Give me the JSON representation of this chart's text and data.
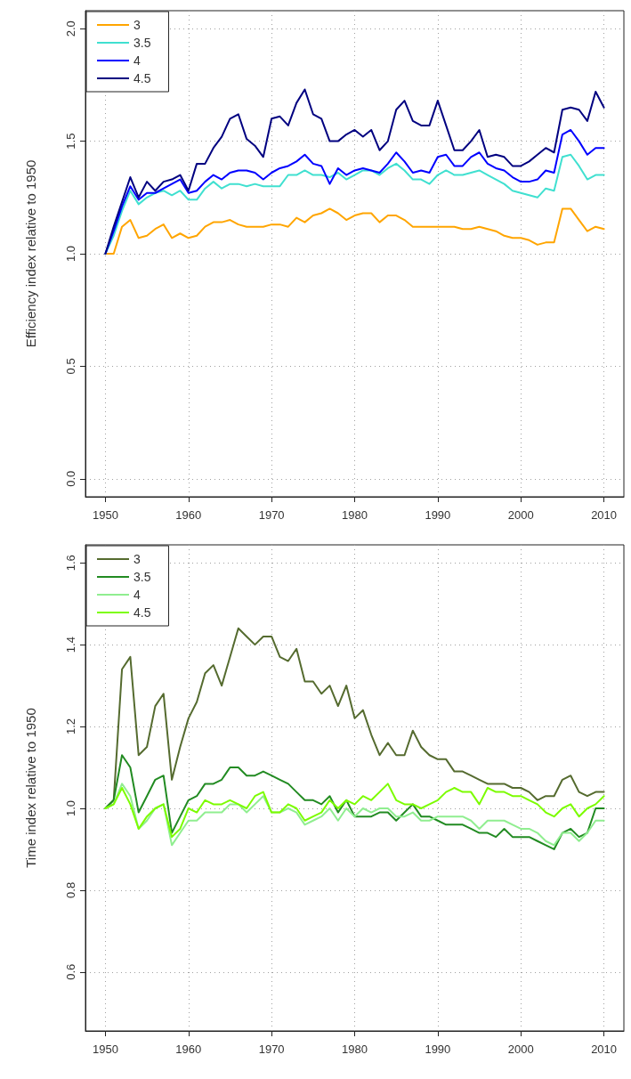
{
  "chart_data": [
    {
      "type": "line",
      "ylabel": "Efficiency index relative to 1950",
      "x": [
        1950,
        1951,
        1952,
        1953,
        1954,
        1955,
        1956,
        1957,
        1958,
        1959,
        1960,
        1961,
        1962,
        1963,
        1964,
        1965,
        1966,
        1967,
        1968,
        1969,
        1970,
        1971,
        1972,
        1973,
        1974,
        1975,
        1976,
        1977,
        1978,
        1979,
        1980,
        1981,
        1982,
        1983,
        1984,
        1985,
        1986,
        1987,
        1988,
        1989,
        1990,
        1991,
        1992,
        1993,
        1994,
        1995,
        1996,
        1997,
        1998,
        1999,
        2000,
        2001,
        2002,
        2003,
        2004,
        2005,
        2006,
        2007,
        2008,
        2009,
        2010
      ],
      "series": [
        {
          "name": "3",
          "color": "#ffa500",
          "values": [
            1.0,
            1.0,
            1.12,
            1.15,
            1.07,
            1.08,
            1.11,
            1.13,
            1.07,
            1.09,
            1.07,
            1.08,
            1.12,
            1.14,
            1.14,
            1.15,
            1.13,
            1.12,
            1.12,
            1.12,
            1.13,
            1.13,
            1.12,
            1.16,
            1.14,
            1.17,
            1.18,
            1.2,
            1.18,
            1.15,
            1.17,
            1.18,
            1.18,
            1.14,
            1.17,
            1.17,
            1.15,
            1.12,
            1.12,
            1.12,
            1.12,
            1.12,
            1.12,
            1.11,
            1.11,
            1.12,
            1.11,
            1.1,
            1.08,
            1.07,
            1.07,
            1.06,
            1.04,
            1.05,
            1.05,
            1.2,
            1.2,
            1.15,
            1.1,
            1.12,
            1.11
          ]
        },
        {
          "name": "3.5",
          "color": "#40e0d0",
          "values": [
            1.0,
            1.08,
            1.19,
            1.28,
            1.22,
            1.25,
            1.27,
            1.28,
            1.26,
            1.28,
            1.24,
            1.24,
            1.29,
            1.32,
            1.29,
            1.31,
            1.31,
            1.3,
            1.31,
            1.3,
            1.3,
            1.3,
            1.35,
            1.35,
            1.37,
            1.35,
            1.35,
            1.34,
            1.36,
            1.33,
            1.35,
            1.37,
            1.37,
            1.35,
            1.38,
            1.4,
            1.37,
            1.33,
            1.33,
            1.31,
            1.35,
            1.37,
            1.35,
            1.35,
            1.36,
            1.37,
            1.35,
            1.33,
            1.31,
            1.28,
            1.27,
            1.26,
            1.25,
            1.29,
            1.28,
            1.43,
            1.44,
            1.39,
            1.33,
            1.35,
            1.35
          ]
        },
        {
          "name": "4",
          "color": "#0000ff",
          "values": [
            1.0,
            1.1,
            1.21,
            1.3,
            1.24,
            1.27,
            1.27,
            1.29,
            1.31,
            1.33,
            1.27,
            1.28,
            1.32,
            1.35,
            1.33,
            1.36,
            1.37,
            1.37,
            1.36,
            1.33,
            1.36,
            1.38,
            1.39,
            1.41,
            1.44,
            1.4,
            1.39,
            1.31,
            1.38,
            1.35,
            1.37,
            1.38,
            1.37,
            1.36,
            1.4,
            1.45,
            1.41,
            1.36,
            1.37,
            1.36,
            1.43,
            1.44,
            1.39,
            1.39,
            1.43,
            1.45,
            1.4,
            1.38,
            1.37,
            1.34,
            1.32,
            1.32,
            1.33,
            1.37,
            1.36,
            1.53,
            1.55,
            1.5,
            1.44,
            1.47,
            1.47
          ]
        },
        {
          "name": "4.5",
          "color": "#000080",
          "values": [
            1.0,
            1.12,
            1.23,
            1.34,
            1.25,
            1.32,
            1.28,
            1.32,
            1.33,
            1.35,
            1.28,
            1.4,
            1.4,
            1.47,
            1.52,
            1.6,
            1.62,
            1.51,
            1.48,
            1.43,
            1.6,
            1.61,
            1.57,
            1.67,
            1.73,
            1.62,
            1.6,
            1.5,
            1.5,
            1.53,
            1.55,
            1.52,
            1.55,
            1.46,
            1.5,
            1.64,
            1.68,
            1.59,
            1.57,
            1.57,
            1.68,
            1.57,
            1.46,
            1.46,
            1.5,
            1.55,
            1.43,
            1.44,
            1.43,
            1.39,
            1.39,
            1.41,
            1.44,
            1.47,
            1.45,
            1.64,
            1.65,
            1.64,
            1.59,
            1.72,
            1.65
          ]
        }
      ],
      "xlim": [
        1947.6,
        2012.4
      ],
      "xticks": [
        1950,
        1960,
        1970,
        1980,
        1990,
        2000,
        2010
      ],
      "ylim": [
        -0.08,
        2.08
      ],
      "yticks": [
        {
          "value": 0,
          "label": "0.0"
        },
        0.5,
        {
          "value": 1,
          "label": "1.0"
        },
        1.5,
        {
          "value": 2,
          "label": "2.0"
        }
      ],
      "grid": true,
      "legend": "top left",
      "marker": "none",
      "line_style": "solid"
    },
    {
      "type": "line",
      "ylabel": "Time index relative to 1950",
      "x": [
        1950,
        1951,
        1952,
        1953,
        1954,
        1955,
        1956,
        1957,
        1958,
        1959,
        1960,
        1961,
        1962,
        1963,
        1964,
        1965,
        1966,
        1967,
        1968,
        1969,
        1970,
        1971,
        1972,
        1973,
        1974,
        1975,
        1976,
        1977,
        1978,
        1979,
        1980,
        1981,
        1982,
        1983,
        1984,
        1985,
        1986,
        1987,
        1988,
        1989,
        1990,
        1991,
        1992,
        1993,
        1994,
        1995,
        1996,
        1997,
        1998,
        1999,
        2000,
        2001,
        2002,
        2003,
        2004,
        2005,
        2006,
        2007,
        2008,
        2009,
        2010
      ],
      "series": [
        {
          "name": "3",
          "color": "#556b2f",
          "values": [
            1.0,
            1.02,
            1.34,
            1.37,
            1.13,
            1.15,
            1.25,
            1.28,
            1.07,
            1.15,
            1.22,
            1.26,
            1.33,
            1.35,
            1.3,
            1.37,
            1.44,
            1.42,
            1.4,
            1.42,
            1.42,
            1.37,
            1.36,
            1.39,
            1.31,
            1.31,
            1.28,
            1.3,
            1.25,
            1.3,
            1.22,
            1.24,
            1.18,
            1.13,
            1.16,
            1.13,
            1.13,
            1.19,
            1.15,
            1.13,
            1.12,
            1.12,
            1.09,
            1.09,
            1.08,
            1.07,
            1.06,
            1.06,
            1.06,
            1.05,
            1.05,
            1.04,
            1.02,
            1.03,
            1.03,
            1.07,
            1.08,
            1.04,
            1.03,
            1.04,
            1.04
          ]
        },
        {
          "name": "3.5",
          "color": "#228b22",
          "values": [
            1.0,
            1.02,
            1.13,
            1.1,
            0.99,
            1.03,
            1.07,
            1.08,
            0.94,
            0.98,
            1.02,
            1.03,
            1.06,
            1.06,
            1.07,
            1.1,
            1.1,
            1.08,
            1.08,
            1.09,
            1.08,
            1.07,
            1.06,
            1.04,
            1.02,
            1.02,
            1.01,
            1.03,
            0.99,
            1.02,
            0.98,
            0.98,
            0.98,
            0.99,
            0.99,
            0.97,
            0.99,
            1.01,
            0.98,
            0.98,
            0.97,
            0.96,
            0.96,
            0.96,
            0.95,
            0.94,
            0.94,
            0.93,
            0.95,
            0.93,
            0.93,
            0.93,
            0.92,
            0.91,
            0.9,
            0.94,
            0.95,
            0.93,
            0.94,
            1.0,
            1.0
          ]
        },
        {
          "name": "4",
          "color": "#90ee90",
          "values": [
            1.0,
            1.01,
            1.06,
            1.03,
            0.95,
            0.97,
            1.0,
            1.01,
            0.91,
            0.94,
            0.97,
            0.97,
            0.99,
            0.99,
            0.99,
            1.01,
            1.01,
            0.99,
            1.01,
            1.03,
            0.99,
            0.99,
            1.0,
            0.99,
            0.96,
            0.97,
            0.98,
            1.0,
            0.97,
            1.0,
            0.98,
            1.0,
            0.99,
            1.0,
            1.0,
            0.98,
            0.98,
            0.99,
            0.97,
            0.97,
            0.98,
            0.98,
            0.98,
            0.98,
            0.97,
            0.95,
            0.97,
            0.97,
            0.97,
            0.96,
            0.95,
            0.95,
            0.94,
            0.92,
            0.91,
            0.94,
            0.94,
            0.92,
            0.94,
            0.97,
            0.97
          ]
        },
        {
          "name": "4.5",
          "color": "#7cfc00",
          "values": [
            1.0,
            1.01,
            1.05,
            1.01,
            0.95,
            0.98,
            1.0,
            1.01,
            0.93,
            0.95,
            1.0,
            0.99,
            1.02,
            1.01,
            1.01,
            1.02,
            1.01,
            1.0,
            1.03,
            1.04,
            0.99,
            0.99,
            1.01,
            1.0,
            0.97,
            0.98,
            0.99,
            1.02,
            1.0,
            1.02,
            1.01,
            1.03,
            1.02,
            1.04,
            1.06,
            1.02,
            1.01,
            1.01,
            1.0,
            1.01,
            1.02,
            1.04,
            1.05,
            1.04,
            1.04,
            1.01,
            1.05,
            1.04,
            1.04,
            1.03,
            1.03,
            1.02,
            1.01,
            0.99,
            0.98,
            1.0,
            1.01,
            0.98,
            1.0,
            1.01,
            1.03
          ]
        }
      ],
      "xlim": [
        1947.6,
        2012.4
      ],
      "xticks": [
        1950,
        1960,
        1970,
        1980,
        1990,
        2000,
        2010
      ],
      "ylim": [
        0.456,
        1.644
      ],
      "yticks": [
        0.6,
        0.8,
        {
          "value": 1,
          "label": "1.0"
        },
        1.2,
        1.4,
        1.6
      ],
      "grid": true,
      "legend": "top left",
      "marker": "none",
      "line_style": "solid"
    }
  ]
}
